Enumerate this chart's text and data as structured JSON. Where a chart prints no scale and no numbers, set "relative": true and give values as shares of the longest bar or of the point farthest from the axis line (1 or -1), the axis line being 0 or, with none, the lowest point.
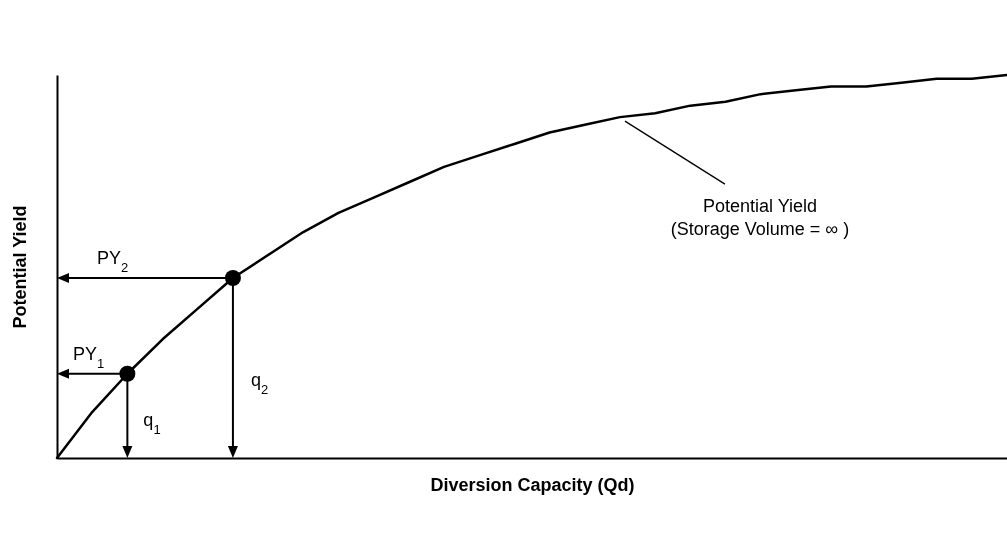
{
  "chart_data": {
    "type": "line",
    "relative": true,
    "xlabel": "Diversion Capacity (Qd)",
    "ylabel": "Potential Yield",
    "categories": [
      null,
      null,
      null,
      null,
      null,
      null,
      null,
      null,
      null,
      null,
      null,
      null,
      null,
      null,
      null,
      null,
      null,
      null,
      null,
      null,
      null,
      null,
      null,
      null,
      null,
      null,
      null,
      null
    ],
    "series": [
      {
        "color": "#000000",
        "values": [
          0,
          0.12,
          0.22,
          0.31,
          0.39,
          0.47,
          0.53,
          0.59,
          0.64,
          0.68,
          0.72,
          0.76,
          0.79,
          0.82,
          0.85,
          0.87,
          0.89,
          0.9,
          0.92,
          0.93,
          0.95,
          0.96,
          0.97,
          0.97,
          0.98,
          0.99,
          0.99,
          1
        ]
      }
    ],
    "annotations": [
      "PY$_{2}$",
      "PY$_{1}$",
      "q$_{2}$",
      "q$_{1}$",
      "Potential Yield",
      "(Storage Volume = ∞ )"
    ]
  }
}
